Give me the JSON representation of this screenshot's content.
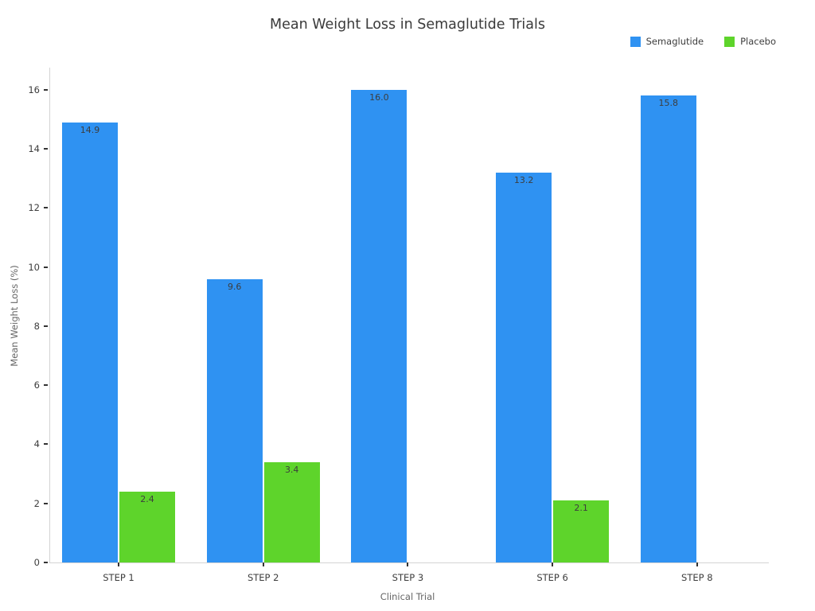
{
  "title": "Mean Weight Loss in Semaglutide Trials",
  "legend": {
    "items": [
      {
        "label": "Semaglutide",
        "color": "#2F92F2"
      },
      {
        "label": "Placebo",
        "color": "#5ED42B"
      }
    ]
  },
  "chart_data": {
    "type": "bar",
    "title": "Mean Weight Loss in Semaglutide Trials",
    "xlabel": "Clinical Trial",
    "ylabel": "Mean Weight Loss (%)",
    "categories": [
      "STEP 1",
      "STEP 2",
      "STEP 3",
      "STEP 6",
      "STEP 8"
    ],
    "series": [
      {
        "name": "Semaglutide",
        "color": "#2F92F2",
        "values": [
          14.9,
          9.6,
          16.0,
          13.2,
          15.8
        ]
      },
      {
        "name": "Placebo",
        "color": "#5ED42B",
        "values": [
          2.4,
          3.4,
          null,
          2.1,
          null
        ]
      }
    ],
    "ylim": [
      0,
      16.75
    ],
    "yticks": [
      0,
      2,
      4,
      6,
      8,
      10,
      12,
      14,
      16
    ],
    "grid": false,
    "legend_position": "top-right",
    "value_labels": true,
    "value_label_position": "inside-top"
  }
}
